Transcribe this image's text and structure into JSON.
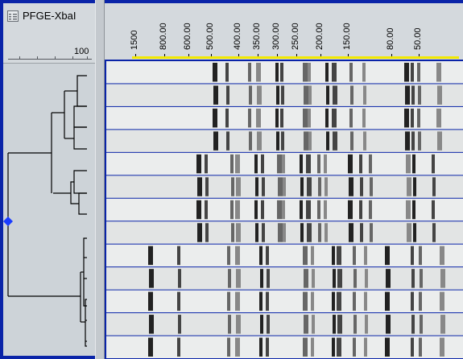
{
  "experiment": {
    "title": "PFGE-XbaI",
    "icon": "experiment-grid-icon",
    "scale_max_label": "100"
  },
  "marker_labels": [
    "1500",
    "800.00",
    "600.00",
    "500.00",
    "400.00",
    "350.00",
    "300.00",
    "250.00",
    "200.00",
    "150.00",
    "80.00",
    "50.00"
  ],
  "lane_count": 13,
  "colors": {
    "background": "#0a24a8",
    "panel": "#cdd3d8",
    "marker_bar": "#f1e800",
    "node_marker": "#1a3cff"
  }
}
